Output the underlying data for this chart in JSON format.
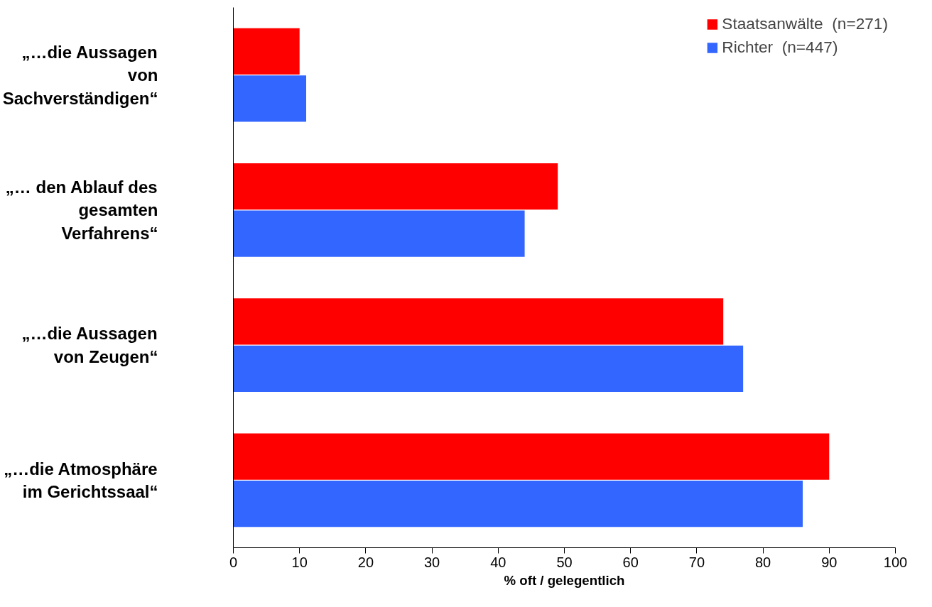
{
  "chart_data": {
    "type": "bar",
    "orientation": "horizontal",
    "xlabel": "% oft / gelegentlich",
    "categories": [
      "„…die Aussagen von Sachverständigen“",
      "„… den Ablauf des gesamten Verfahrens“",
      "„…die Aussagen von Zeugen“",
      "„…die Atmosphäre im Gerichtssaal“"
    ],
    "series": [
      {
        "name": "Staatsanwälte  (n=271)",
        "color": "#ff0000",
        "values": [
          10,
          49,
          74,
          90
        ]
      },
      {
        "name": "Richter  (n=447)",
        "color": "#3366ff",
        "values": [
          11,
          44,
          77,
          86
        ]
      }
    ],
    "xlim": [
      0,
      100
    ],
    "xticks": [
      0,
      10,
      20,
      30,
      40,
      50,
      60,
      70,
      80,
      90,
      100
    ],
    "grid": false,
    "legend": "top right"
  }
}
